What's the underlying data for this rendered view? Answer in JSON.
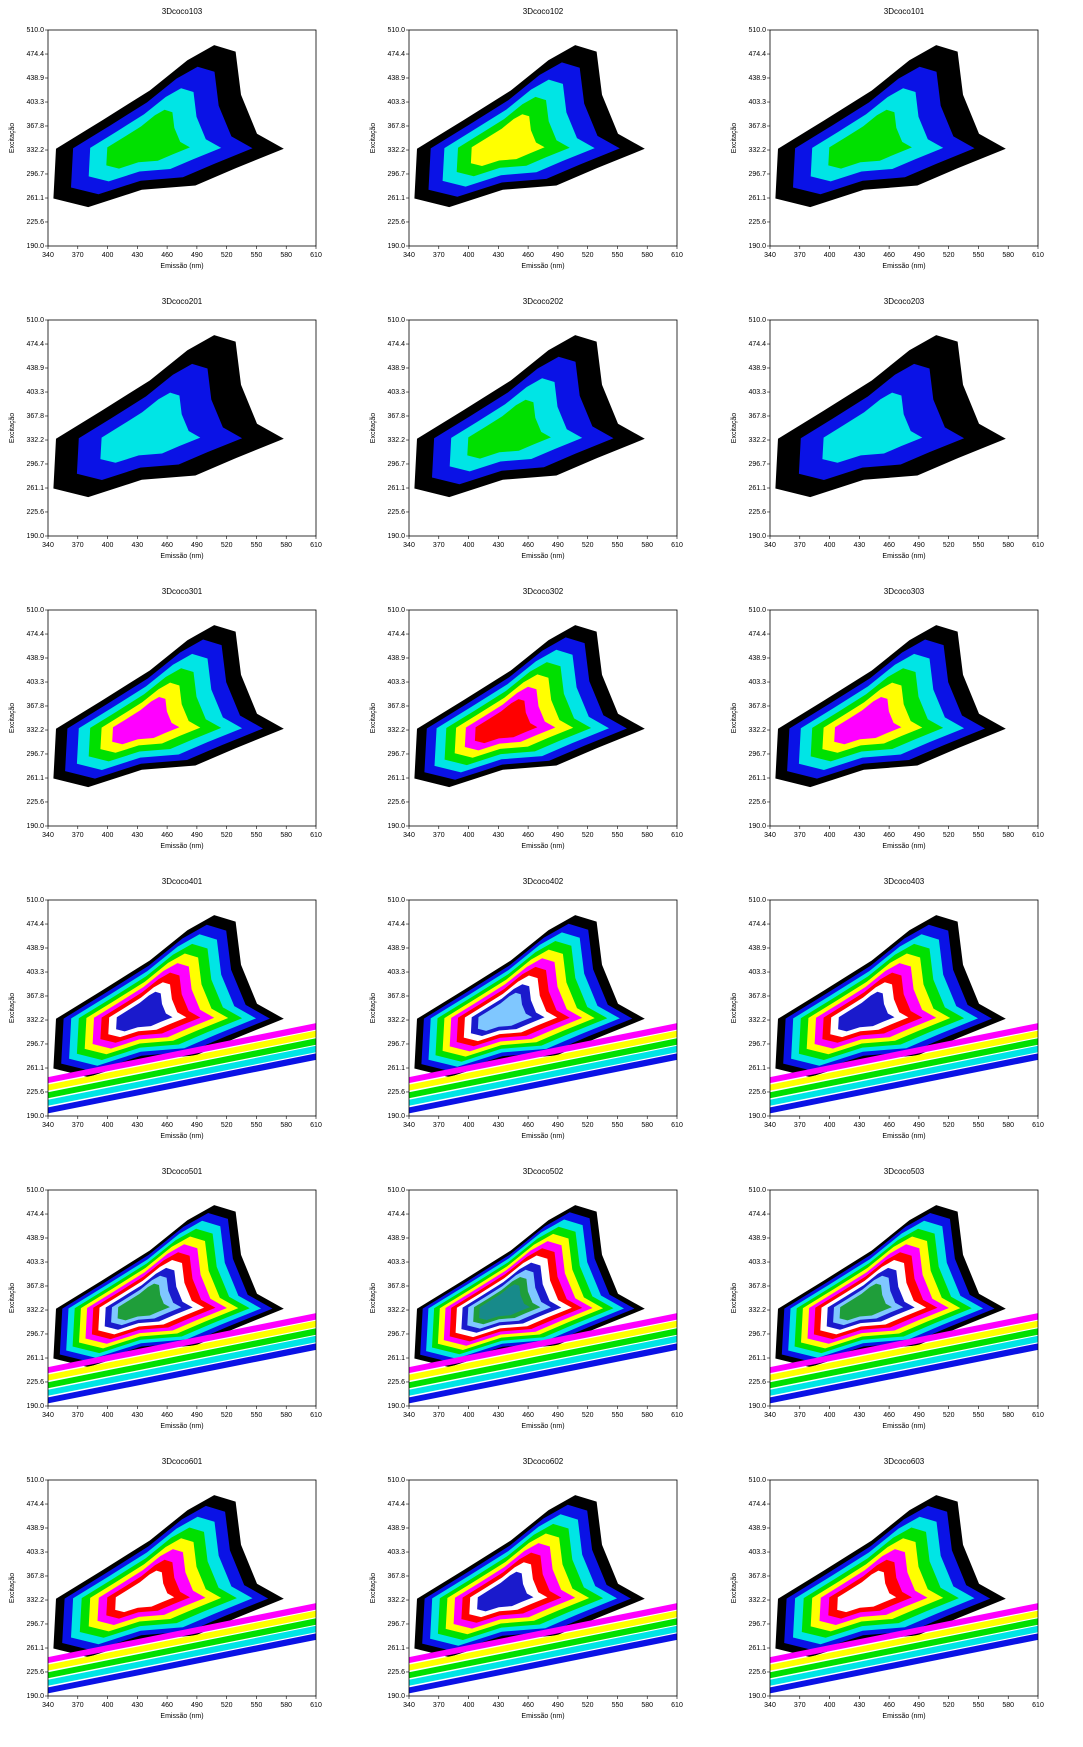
{
  "chart_data": [
    {
      "type": "contour",
      "title": "3Dcoco103",
      "xlabel": "Emissão (nm)",
      "ylabel": "Excitação",
      "xlim": [
        340,
        610
      ],
      "ylim": [
        190,
        510
      ],
      "xticks": [
        340,
        370,
        400,
        430,
        460,
        490,
        520,
        550,
        580,
        610
      ],
      "yticks": [
        {
          "value": 190,
          "label": "190.0"
        },
        225.6,
        261.1,
        296.7,
        332.2,
        367.8,
        403.3,
        438.9,
        474.4,
        {
          "value": 510,
          "label": "510.0"
        }
      ]
    },
    {
      "type": "contour",
      "title": "3Dcoco102",
      "xlabel": "Emissão (nm)",
      "ylabel": "Excitação",
      "xlim": [
        340,
        610
      ],
      "ylim": [
        190,
        510
      ],
      "xticks": [
        340,
        370,
        400,
        430,
        460,
        490,
        520,
        550,
        580,
        610
      ],
      "yticks": [
        {
          "value": 190,
          "label": "190.0"
        },
        225.6,
        261.1,
        296.7,
        332.2,
        367.8,
        403.3,
        438.9,
        474.4,
        {
          "value": 510,
          "label": "510.0"
        }
      ]
    },
    {
      "type": "contour",
      "title": "3Dcoco101",
      "xlabel": "Emissão (nm)",
      "ylabel": "Excitação",
      "xlim": [
        340,
        610
      ],
      "ylim": [
        190,
        510
      ],
      "xticks": [
        340,
        370,
        400,
        430,
        460,
        490,
        520,
        550,
        580,
        610
      ],
      "yticks": [
        {
          "value": 190,
          "label": "190.0"
        },
        225.6,
        261.1,
        296.7,
        332.2,
        367.8,
        403.3,
        438.9,
        474.4,
        {
          "value": 510,
          "label": "510.0"
        }
      ]
    },
    {
      "type": "contour",
      "title": "3Dcoco201",
      "xlabel": "Emissão (nm)",
      "ylabel": "Excitação",
      "xlim": [
        340,
        610
      ],
      "ylim": [
        190,
        510
      ],
      "xticks": [
        340,
        370,
        400,
        430,
        460,
        490,
        520,
        550,
        580,
        610
      ],
      "yticks": [
        {
          "value": 190,
          "label": "190.0"
        },
        225.6,
        261.1,
        296.7,
        332.2,
        367.8,
        403.3,
        438.9,
        474.4,
        {
          "value": 510,
          "label": "510.0"
        }
      ]
    },
    {
      "type": "contour",
      "title": "3Dcoco202",
      "xlabel": "Emissão (nm)",
      "ylabel": "Excitação",
      "xlim": [
        340,
        610
      ],
      "ylim": [
        190,
        510
      ],
      "xticks": [
        340,
        370,
        400,
        430,
        460,
        490,
        520,
        550,
        580,
        610
      ],
      "yticks": [
        {
          "value": 190,
          "label": "190.0"
        },
        225.6,
        261.1,
        296.7,
        332.2,
        367.8,
        403.3,
        438.9,
        474.4,
        {
          "value": 510,
          "label": "510.0"
        }
      ]
    },
    {
      "type": "contour",
      "title": "3Dcoco203",
      "xlabel": "Emissão (nm)",
      "ylabel": "Excitação",
      "xlim": [
        340,
        610
      ],
      "ylim": [
        190,
        510
      ],
      "xticks": [
        340,
        370,
        400,
        430,
        460,
        490,
        520,
        550,
        580,
        610
      ],
      "yticks": [
        {
          "value": 190,
          "label": "190.0"
        },
        225.6,
        261.1,
        296.7,
        332.2,
        367.8,
        403.3,
        438.9,
        474.4,
        {
          "value": 510,
          "label": "510.0"
        }
      ]
    },
    {
      "type": "contour",
      "title": "3Dcoco301",
      "xlabel": "Emissão (nm)",
      "ylabel": "Excitação",
      "xlim": [
        340,
        610
      ],
      "ylim": [
        190,
        510
      ],
      "xticks": [
        340,
        370,
        400,
        430,
        460,
        490,
        520,
        550,
        580,
        610
      ],
      "yticks": [
        {
          "value": 190,
          "label": "190.0"
        },
        225.6,
        261.1,
        296.7,
        332.2,
        367.8,
        403.3,
        438.9,
        474.4,
        {
          "value": 510,
          "label": "510.0"
        }
      ]
    },
    {
      "type": "contour",
      "title": "3Dcoco302",
      "xlabel": "Emissão (nm)",
      "ylabel": "Excitação",
      "xlim": [
        340,
        610
      ],
      "ylim": [
        190,
        510
      ],
      "xticks": [
        340,
        370,
        400,
        430,
        460,
        490,
        520,
        550,
        580,
        610
      ],
      "yticks": [
        {
          "value": 190,
          "label": "190.0"
        },
        225.6,
        261.1,
        296.7,
        332.2,
        367.8,
        403.3,
        438.9,
        474.4,
        {
          "value": 510,
          "label": "510.0"
        }
      ]
    },
    {
      "type": "contour",
      "title": "3Dcoco303",
      "xlabel": "Emissão (nm)",
      "ylabel": "Excitação",
      "xlim": [
        340,
        610
      ],
      "ylim": [
        190,
        510
      ],
      "xticks": [
        340,
        370,
        400,
        430,
        460,
        490,
        520,
        550,
        580,
        610
      ],
      "yticks": [
        {
          "value": 190,
          "label": "190.0"
        },
        225.6,
        261.1,
        296.7,
        332.2,
        367.8,
        403.3,
        438.9,
        474.4,
        {
          "value": 510,
          "label": "510.0"
        }
      ]
    },
    {
      "type": "contour",
      "title": "3Dcoco401",
      "xlabel": "Emissão (nm)",
      "ylabel": "Excitação",
      "xlim": [
        340,
        610
      ],
      "ylim": [
        190,
        510
      ],
      "xticks": [
        340,
        370,
        400,
        430,
        460,
        490,
        520,
        550,
        580,
        610
      ],
      "yticks": [
        {
          "value": 190,
          "label": "190.0"
        },
        225.6,
        261.1,
        296.7,
        332.2,
        367.8,
        403.3,
        438.9,
        474.4,
        {
          "value": 510,
          "label": "510.0"
        }
      ]
    },
    {
      "type": "contour",
      "title": "3Dcoco402",
      "xlabel": "Emissão (nm)",
      "ylabel": "Excitação",
      "xlim": [
        340,
        610
      ],
      "ylim": [
        190,
        510
      ],
      "xticks": [
        340,
        370,
        400,
        430,
        460,
        490,
        520,
        550,
        580,
        610
      ],
      "yticks": [
        {
          "value": 190,
          "label": "190.0"
        },
        225.6,
        261.1,
        296.7,
        332.2,
        367.8,
        403.3,
        438.9,
        474.4,
        {
          "value": 510,
          "label": "510.0"
        }
      ]
    },
    {
      "type": "contour",
      "title": "3Dcoco403",
      "xlabel": "Emissão (nm)",
      "ylabel": "Excitação",
      "xlim": [
        340,
        610
      ],
      "ylim": [
        190,
        510
      ],
      "xticks": [
        340,
        370,
        400,
        430,
        460,
        490,
        520,
        550,
        580,
        610
      ],
      "yticks": [
        {
          "value": 190,
          "label": "190.0"
        },
        225.6,
        261.1,
        296.7,
        332.2,
        367.8,
        403.3,
        438.9,
        474.4,
        {
          "value": 510,
          "label": "510.0"
        }
      ]
    },
    {
      "type": "contour",
      "title": "3Dcoco501",
      "xlabel": "Emissão (nm)",
      "ylabel": "Excitação",
      "xlim": [
        340,
        610
      ],
      "ylim": [
        190,
        510
      ],
      "xticks": [
        340,
        370,
        400,
        430,
        460,
        490,
        520,
        550,
        580,
        610
      ],
      "yticks": [
        {
          "value": 190,
          "label": "190.0"
        },
        225.6,
        261.1,
        296.7,
        332.2,
        367.8,
        403.3,
        438.9,
        474.4,
        {
          "value": 510,
          "label": "510.0"
        }
      ]
    },
    {
      "type": "contour",
      "title": "3Dcoco502",
      "xlabel": "Emissão (nm)",
      "ylabel": "Excitação",
      "xlim": [
        340,
        610
      ],
      "ylim": [
        190,
        510
      ],
      "xticks": [
        340,
        370,
        400,
        430,
        460,
        490,
        520,
        550,
        580,
        610
      ],
      "yticks": [
        {
          "value": 190,
          "label": "190.0"
        },
        225.6,
        261.1,
        296.7,
        332.2,
        367.8,
        403.3,
        438.9,
        474.4,
        {
          "value": 510,
          "label": "510.0"
        }
      ]
    },
    {
      "type": "contour",
      "title": "3Dcoco503",
      "xlabel": "Emissão (nm)",
      "ylabel": "Excitação",
      "xlim": [
        340,
        610
      ],
      "ylim": [
        190,
        510
      ],
      "xticks": [
        340,
        370,
        400,
        430,
        460,
        490,
        520,
        550,
        580,
        610
      ],
      "yticks": [
        {
          "value": 190,
          "label": "190.0"
        },
        225.6,
        261.1,
        296.7,
        332.2,
        367.8,
        403.3,
        438.9,
        474.4,
        {
          "value": 510,
          "label": "510.0"
        }
      ]
    },
    {
      "type": "contour",
      "title": "3Dcoco601",
      "xlabel": "Emissão (nm)",
      "ylabel": "Excitação",
      "xlim": [
        340,
        610
      ],
      "ylim": [
        190,
        510
      ],
      "xticks": [
        340,
        370,
        400,
        430,
        460,
        490,
        520,
        550,
        580,
        610
      ],
      "yticks": [
        {
          "value": 190,
          "label": "190.0"
        },
        225.6,
        261.1,
        296.7,
        332.2,
        367.8,
        403.3,
        438.9,
        474.4,
        {
          "value": 510,
          "label": "510.0"
        }
      ]
    },
    {
      "type": "contour",
      "title": "3Dcoco602",
      "xlabel": "Emissão (nm)",
      "ylabel": "Excitação",
      "xlim": [
        340,
        610
      ],
      "ylim": [
        190,
        510
      ],
      "xticks": [
        340,
        370,
        400,
        430,
        460,
        490,
        520,
        550,
        580,
        610
      ],
      "yticks": [
        {
          "value": 190,
          "label": "190.0"
        },
        225.6,
        261.1,
        296.7,
        332.2,
        367.8,
        403.3,
        438.9,
        474.4,
        {
          "value": 510,
          "label": "510.0"
        }
      ]
    },
    {
      "type": "contour",
      "title": "3Dcoco603",
      "xlabel": "Emissão (nm)",
      "ylabel": "Excitação",
      "xlim": [
        340,
        610
      ],
      "ylim": [
        190,
        510
      ],
      "xticks": [
        340,
        370,
        400,
        430,
        460,
        490,
        520,
        550,
        580,
        610
      ],
      "yticks": [
        {
          "value": 190,
          "label": "190.0"
        },
        225.6,
        261.1,
        296.7,
        332.2,
        367.8,
        403.3,
        438.9,
        474.4,
        {
          "value": 510,
          "label": "510.0"
        }
      ]
    }
  ]
}
